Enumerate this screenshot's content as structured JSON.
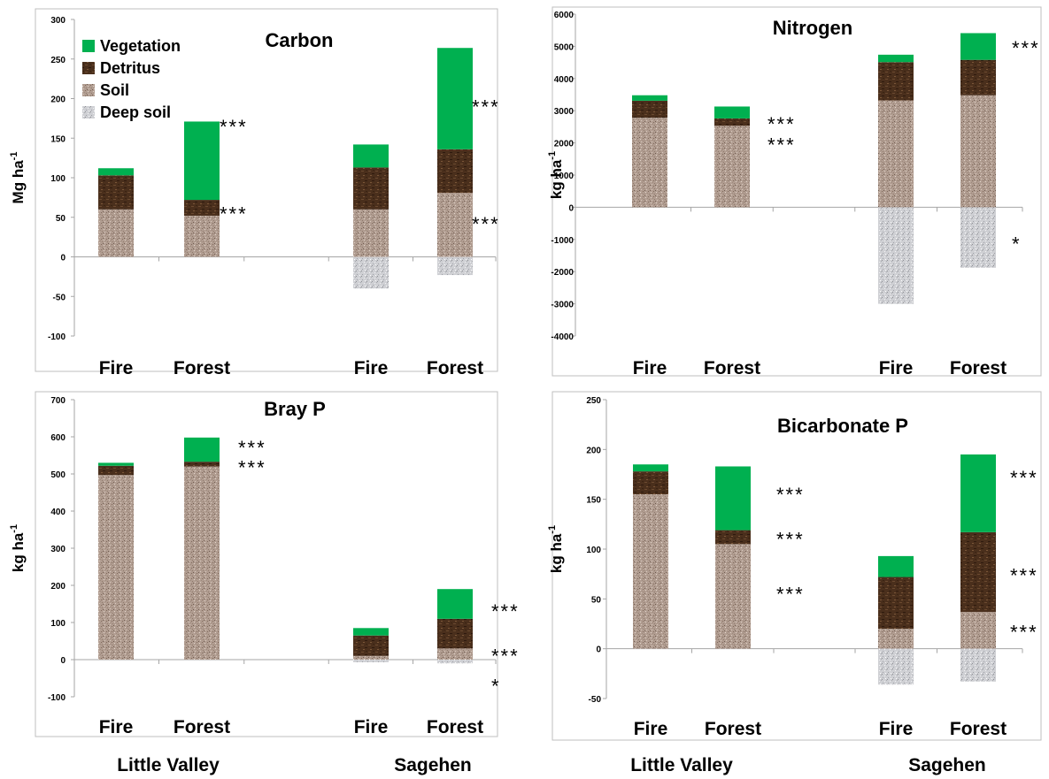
{
  "legend": [
    {
      "label": "Vegetation",
      "pattern": "veg"
    },
    {
      "label": "Detritus",
      "pattern": "det"
    },
    {
      "label": "Soil",
      "pattern": "soil"
    },
    {
      "label": "Deep soil",
      "pattern": "deep"
    }
  ],
  "colors": {
    "vegetation": "#00b050",
    "detritus": "#4a2f1c",
    "soil": "#b19d91",
    "deep_soil": "#cfd0d4",
    "axis": "#a6a6a6",
    "frame": "#bfbfbf",
    "text": "#000000"
  },
  "sites": [
    "Little Valley",
    "Sagehen"
  ],
  "chart_data": [
    {
      "type": "bar",
      "stacked": true,
      "title": "Carbon",
      "ylabel": "Mg ha-1",
      "ylabel_main": "Mg ha",
      "ylabel_sup": "-1",
      "ylim": [
        -100,
        300
      ],
      "yticks": [
        -100,
        -50,
        0,
        50,
        100,
        150,
        200,
        250,
        300
      ],
      "categories": [
        "Fire",
        "Forest",
        "Fire",
        "Forest"
      ],
      "groups": [
        "Little Valley",
        "Sagehen"
      ],
      "series": [
        {
          "name": "Soil",
          "values": [
            60,
            52,
            60,
            81
          ]
        },
        {
          "name": "Detritus",
          "values": [
            43,
            20,
            53,
            55
          ]
        },
        {
          "name": "Vegetation",
          "values": [
            9,
            99,
            29,
            128
          ]
        },
        {
          "name": "Deep soil",
          "values": [
            0,
            0,
            -40,
            -23
          ]
        }
      ],
      "annotations": [
        {
          "text": "***",
          "category_index": 1,
          "y": 165
        },
        {
          "text": "***",
          "category_index": 1,
          "y": 55
        },
        {
          "text": "***",
          "category_index": 3,
          "y": 190
        },
        {
          "text": "***",
          "category_index": 3,
          "y": 42
        }
      ],
      "legend": "top-left"
    },
    {
      "type": "bar",
      "stacked": true,
      "title": "Nitrogen",
      "ylabel": "kg ha-1",
      "ylabel_main": "kg ha",
      "ylabel_sup": "-1",
      "ylim": [
        -4000,
        6000
      ],
      "yticks": [
        -4000,
        -3000,
        -2000,
        -1000,
        0,
        1000,
        2000,
        3000,
        4000,
        5000,
        6000
      ],
      "categories": [
        "Fire",
        "Forest",
        "Fire",
        "Forest"
      ],
      "groups": [
        "Little Valley",
        "Sagehen"
      ],
      "series": [
        {
          "name": "Soil",
          "values": [
            2780,
            2530,
            3320,
            3480
          ]
        },
        {
          "name": "Detritus",
          "values": [
            530,
            230,
            1190,
            1100
          ]
        },
        {
          "name": "Vegetation",
          "values": [
            170,
            370,
            230,
            830
          ]
        },
        {
          "name": "Deep soil",
          "values": [
            0,
            0,
            -3000,
            -1880
          ]
        }
      ],
      "annotations": [
        {
          "text": "***",
          "category_index": 1,
          "y": 2600
        },
        {
          "text": "***",
          "category_index": 1,
          "y": 1950
        },
        {
          "text": "***",
          "category_index": 3,
          "y": 4950
        },
        {
          "text": "*",
          "category_index": 3,
          "y": -1130
        }
      ]
    },
    {
      "type": "bar",
      "stacked": true,
      "title": "Bray P",
      "ylabel": "kg ha-1",
      "ylabel_main": "kg ha",
      "ylabel_sup": "-1",
      "ylim": [
        -100,
        700
      ],
      "yticks": [
        -100,
        0,
        100,
        200,
        300,
        400,
        500,
        600,
        700
      ],
      "categories": [
        "Fire",
        "Forest",
        "Fire",
        "Forest"
      ],
      "groups": [
        "Little Valley",
        "Sagehen"
      ],
      "series": [
        {
          "name": "Soil",
          "values": [
            497,
            520,
            10,
            30
          ]
        },
        {
          "name": "Detritus",
          "values": [
            25,
            13,
            55,
            80
          ]
        },
        {
          "name": "Vegetation",
          "values": [
            8,
            65,
            20,
            80
          ]
        },
        {
          "name": "Deep soil",
          "values": [
            0,
            0,
            -7,
            -10
          ]
        }
      ],
      "annotations": [
        {
          "text": "***",
          "category_index": 1,
          "y": 572
        },
        {
          "text": "***",
          "category_index": 1,
          "y": 518
        },
        {
          "text": "***",
          "category_index": 3,
          "y": 131
        },
        {
          "text": "***",
          "category_index": 3,
          "y": 11
        },
        {
          "text": "*",
          "category_index": 3,
          "y": -70
        }
      ]
    },
    {
      "type": "bar",
      "stacked": true,
      "title": "Bicarbonate P",
      "ylabel": "kg ha-1",
      "ylabel_main": "kg ha",
      "ylabel_sup": "-1",
      "ylim": [
        -50,
        250
      ],
      "yticks": [
        -50,
        0,
        50,
        100,
        150,
        200,
        250
      ],
      "categories": [
        "Fire",
        "Forest",
        "Fire",
        "Forest"
      ],
      "groups": [
        "Little Valley",
        "Sagehen"
      ],
      "series": [
        {
          "name": "Soil",
          "values": [
            155,
            105,
            20,
            37
          ]
        },
        {
          "name": "Detritus",
          "values": [
            23,
            14,
            52,
            80
          ]
        },
        {
          "name": "Vegetation",
          "values": [
            7,
            64,
            21,
            78
          ]
        },
        {
          "name": "Deep soil",
          "values": [
            0,
            0,
            -36,
            -33
          ]
        }
      ],
      "annotations": [
        {
          "text": "***",
          "category_index": 1,
          "y": 155
        },
        {
          "text": "***",
          "category_index": 1,
          "y": 110
        },
        {
          "text": "***",
          "category_index": 1,
          "y": 55
        },
        {
          "text": "***",
          "category_index": 3,
          "y": 172
        },
        {
          "text": "***",
          "category_index": 3,
          "y": 74
        },
        {
          "text": "***",
          "category_index": 3,
          "y": 17
        }
      ]
    }
  ]
}
